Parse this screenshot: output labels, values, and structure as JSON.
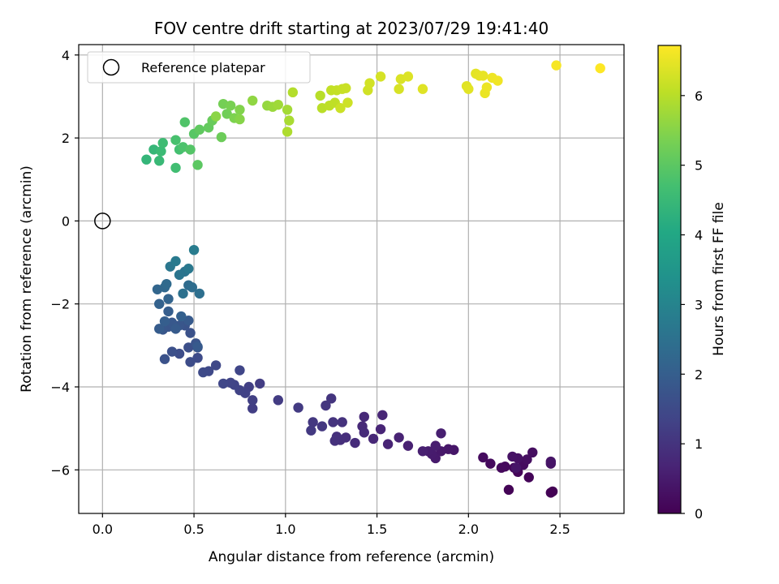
{
  "chart_data": {
    "type": "scatter",
    "title": "FOV centre drift starting at 2023/07/29 19:41:40",
    "xlabel": "Angular distance from reference (arcmin)",
    "ylabel": "Rotation from reference (arcmin)",
    "xlim": [
      -0.13,
      2.85
    ],
    "ylim": [
      -7.05,
      4.25
    ],
    "xticks": [
      0.0,
      0.5,
      1.0,
      1.5,
      2.0,
      2.5
    ],
    "xtick_labels": [
      "0.0",
      "0.5",
      "1.0",
      "1.5",
      "2.0",
      "2.5"
    ],
    "yticks": [
      -6,
      -4,
      -2,
      0,
      2,
      4
    ],
    "ytick_labels": [
      "−6",
      "−4",
      "−2",
      "0",
      "2",
      "4"
    ],
    "grid": true,
    "legend": {
      "position": "top-left",
      "entries": [
        {
          "label": "Reference platepar",
          "marker": "open-circle",
          "color": "#000000"
        }
      ]
    },
    "reference_point": {
      "x": 0.0,
      "y": 0.0
    },
    "colorbar": {
      "label": "Hours from first FF file",
      "range": [
        0,
        6.72
      ],
      "ticks": [
        0,
        1,
        2,
        3,
        4,
        5,
        6
      ],
      "tick_labels": [
        "0",
        "1",
        "2",
        "3",
        "4",
        "5",
        "6"
      ],
      "colormap": "viridis"
    },
    "marker_color_range": [
      "#440154",
      "#3b528b",
      "#21918c",
      "#5ec962",
      "#fde725"
    ],
    "points": [
      [
        2.46,
        -6.52,
        0.0
      ],
      [
        2.45,
        -6.55,
        0.02
      ],
      [
        2.22,
        -6.48,
        0.05
      ],
      [
        2.33,
        -6.18,
        0.08
      ],
      [
        2.27,
        -6.05,
        0.1
      ],
      [
        2.25,
        -5.95,
        0.12
      ],
      [
        2.2,
        -5.92,
        0.14
      ],
      [
        2.18,
        -5.95,
        0.16
      ],
      [
        2.12,
        -5.85,
        0.18
      ],
      [
        2.08,
        -5.7,
        0.2
      ],
      [
        2.3,
        -5.88,
        0.22
      ],
      [
        2.35,
        -5.58,
        0.25
      ],
      [
        2.32,
        -5.75,
        0.27
      ],
      [
        2.27,
        -5.72,
        0.3
      ],
      [
        2.24,
        -5.68,
        0.32
      ],
      [
        2.45,
        -5.85,
        0.35
      ],
      [
        2.45,
        -5.8,
        0.37
      ],
      [
        2.26,
        -5.95,
        0.38
      ],
      [
        1.92,
        -5.52,
        0.4
      ],
      [
        1.89,
        -5.5,
        0.42
      ],
      [
        1.85,
        -5.55,
        0.45
      ],
      [
        1.82,
        -5.72,
        0.48
      ],
      [
        1.8,
        -5.62,
        0.5
      ],
      [
        1.78,
        -5.55,
        0.52
      ],
      [
        1.82,
        -5.42,
        0.55
      ],
      [
        1.85,
        -5.12,
        0.58
      ],
      [
        1.75,
        -5.55,
        0.6
      ],
      [
        1.67,
        -5.42,
        0.62
      ],
      [
        1.62,
        -5.22,
        0.65
      ],
      [
        1.56,
        -5.38,
        0.67
      ],
      [
        1.52,
        -5.02,
        0.7
      ],
      [
        1.53,
        -4.68,
        0.72
      ],
      [
        1.48,
        -5.25,
        0.75
      ],
      [
        1.43,
        -4.72,
        0.77
      ],
      [
        1.42,
        -4.95,
        0.8
      ],
      [
        1.43,
        -5.1,
        0.82
      ],
      [
        1.38,
        -5.35,
        0.85
      ],
      [
        1.33,
        -5.22,
        0.88
      ],
      [
        1.3,
        -5.28,
        0.9
      ],
      [
        1.28,
        -5.2,
        0.92
      ],
      [
        1.27,
        -5.3,
        0.95
      ],
      [
        1.31,
        -4.85,
        0.97
      ],
      [
        1.26,
        -4.85,
        1.0
      ],
      [
        1.25,
        -4.28,
        1.02
      ],
      [
        1.22,
        -4.45,
        1.05
      ],
      [
        1.2,
        -4.95,
        1.07
      ],
      [
        1.15,
        -4.85,
        1.1
      ],
      [
        1.14,
        -5.05,
        1.12
      ],
      [
        1.07,
        -4.5,
        1.15
      ],
      [
        0.96,
        -4.32,
        1.18
      ],
      [
        0.86,
        -3.92,
        1.2
      ],
      [
        0.82,
        -4.52,
        1.22
      ],
      [
        0.82,
        -4.32,
        1.25
      ],
      [
        0.8,
        -4.0,
        1.27
      ],
      [
        0.78,
        -4.15,
        1.3
      ],
      [
        0.75,
        -4.08,
        1.32
      ],
      [
        0.72,
        -3.95,
        1.35
      ],
      [
        0.7,
        -3.9,
        1.37
      ],
      [
        0.75,
        -3.6,
        1.4
      ],
      [
        0.66,
        -3.92,
        1.42
      ],
      [
        0.62,
        -3.48,
        1.45
      ],
      [
        0.58,
        -3.62,
        1.48
      ],
      [
        0.55,
        -3.65,
        1.5
      ],
      [
        0.52,
        -3.3,
        1.52
      ],
      [
        0.48,
        -3.4,
        1.55
      ],
      [
        0.42,
        -3.2,
        1.58
      ],
      [
        0.52,
        -3.05,
        1.6
      ],
      [
        0.47,
        -3.05,
        1.62
      ],
      [
        0.38,
        -3.15,
        1.65
      ],
      [
        0.34,
        -3.33,
        1.68
      ],
      [
        0.48,
        -2.7,
        1.7
      ],
      [
        0.45,
        -2.52,
        1.72
      ],
      [
        0.51,
        -2.95,
        1.75
      ],
      [
        0.42,
        -2.52,
        1.78
      ],
      [
        0.36,
        -2.55,
        1.8
      ],
      [
        0.33,
        -2.62,
        1.82
      ],
      [
        0.38,
        -2.45,
        1.85
      ],
      [
        0.47,
        -2.4,
        1.88
      ],
      [
        0.52,
        -3.03,
        1.9
      ],
      [
        0.4,
        -2.6,
        1.92
      ],
      [
        0.31,
        -2.6,
        1.95
      ],
      [
        0.36,
        -2.18,
        1.98
      ],
      [
        0.34,
        -2.42,
        2.0
      ],
      [
        0.43,
        -2.3,
        2.05
      ],
      [
        0.31,
        -2.0,
        2.1
      ],
      [
        0.36,
        -1.88,
        2.15
      ],
      [
        0.3,
        -1.65,
        2.2
      ],
      [
        0.34,
        -1.6,
        2.25
      ],
      [
        0.35,
        -1.52,
        2.3
      ],
      [
        0.47,
        -1.55,
        2.35
      ],
      [
        0.49,
        -1.6,
        2.4
      ],
      [
        0.53,
        -1.75,
        2.45
      ],
      [
        0.44,
        -1.75,
        2.5
      ],
      [
        0.45,
        -1.22,
        2.55
      ],
      [
        0.42,
        -1.3,
        2.6
      ],
      [
        0.37,
        -1.1,
        2.65
      ],
      [
        0.47,
        -1.15,
        2.7
      ],
      [
        0.4,
        -0.97,
        2.75
      ],
      [
        0.5,
        -0.7,
        2.8
      ],
      [
        0.24,
        1.48,
        4.4
      ],
      [
        0.28,
        1.72,
        4.45
      ],
      [
        0.31,
        1.45,
        4.5
      ],
      [
        0.32,
        1.68,
        4.55
      ],
      [
        0.33,
        1.88,
        4.6
      ],
      [
        0.4,
        1.28,
        4.65
      ],
      [
        0.42,
        1.72,
        4.7
      ],
      [
        0.4,
        1.95,
        4.75
      ],
      [
        0.44,
        1.78,
        4.8
      ],
      [
        0.45,
        2.38,
        4.85
      ],
      [
        0.48,
        1.72,
        4.9
      ],
      [
        0.5,
        2.1,
        4.95
      ],
      [
        0.52,
        1.35,
        5.0
      ],
      [
        0.53,
        2.2,
        5.05
      ],
      [
        0.58,
        2.25,
        5.1
      ],
      [
        0.6,
        2.42,
        5.15
      ],
      [
        0.65,
        2.02,
        5.2
      ],
      [
        0.68,
        2.58,
        5.25
      ],
      [
        0.66,
        2.82,
        5.3
      ],
      [
        0.7,
        2.78,
        5.35
      ],
      [
        0.72,
        2.48,
        5.4
      ],
      [
        0.75,
        2.68,
        5.45
      ],
      [
        0.75,
        2.45,
        5.5
      ],
      [
        0.62,
        2.52,
        5.55
      ],
      [
        0.82,
        2.9,
        5.6
      ],
      [
        0.9,
        2.78,
        5.65
      ],
      [
        0.93,
        2.75,
        5.7
      ],
      [
        0.96,
        2.8,
        5.75
      ],
      [
        1.01,
        2.68,
        5.8
      ],
      [
        1.02,
        2.42,
        5.85
      ],
      [
        1.01,
        2.15,
        5.9
      ],
      [
        1.04,
        3.1,
        5.95
      ],
      [
        1.19,
        3.02,
        6.0
      ],
      [
        1.2,
        2.72,
        6.02
      ],
      [
        1.24,
        2.78,
        6.05
      ],
      [
        1.27,
        2.85,
        6.07
      ],
      [
        1.25,
        3.15,
        6.1
      ],
      [
        1.28,
        3.15,
        6.12
      ],
      [
        1.31,
        3.18,
        6.15
      ],
      [
        1.33,
        3.2,
        6.17
      ],
      [
        1.3,
        2.72,
        6.2
      ],
      [
        1.34,
        2.85,
        6.22
      ],
      [
        1.45,
        3.15,
        6.25
      ],
      [
        1.46,
        3.32,
        6.27
      ],
      [
        1.52,
        3.48,
        6.3
      ],
      [
        1.62,
        3.18,
        6.32
      ],
      [
        1.63,
        3.42,
        6.35
      ],
      [
        1.67,
        3.48,
        6.37
      ],
      [
        1.75,
        3.18,
        6.4
      ],
      [
        1.99,
        3.25,
        6.42
      ],
      [
        2.0,
        3.18,
        6.44
      ],
      [
        2.04,
        3.55,
        6.46
      ],
      [
        2.06,
        3.5,
        6.48
      ],
      [
        2.08,
        3.5,
        6.5
      ],
      [
        2.09,
        3.08,
        6.52
      ],
      [
        2.1,
        3.22,
        6.54
      ],
      [
        2.13,
        3.45,
        6.56
      ],
      [
        2.16,
        3.38,
        6.58
      ],
      [
        2.48,
        3.75,
        6.65
      ],
      [
        2.72,
        3.68,
        6.72
      ]
    ]
  }
}
